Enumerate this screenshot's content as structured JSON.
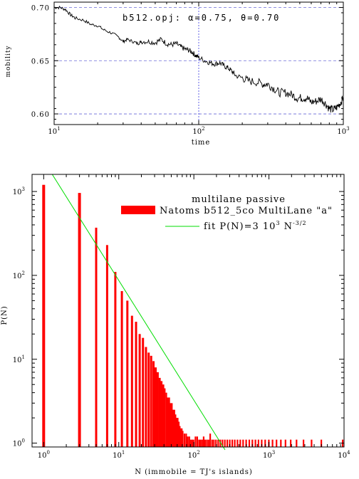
{
  "chart_data": [
    {
      "type": "line",
      "annotation": "b512.opj:   α=0.75,  θ=0.70",
      "xlabel": "time",
      "ylabel": "mobility",
      "xscale": "log",
      "xlim": [
        10,
        1000
      ],
      "ylim": [
        0.59,
        0.705
      ],
      "xticks": [
        10,
        100,
        1000
      ],
      "xtick_labels": [
        {
          "base": "10",
          "exp": "1"
        },
        {
          "base": "10",
          "exp": "2"
        },
        {
          "base": "10",
          "exp": "3"
        }
      ],
      "yticks": [
        0.6,
        0.65,
        0.7
      ],
      "ytick_labels": [
        "0.60",
        "0.65",
        "0.70"
      ],
      "grid": "dashed horizontal at y ticks, vertical at x=100",
      "series": [
        {
          "color": "#000000",
          "x": [
            10,
            11,
            12,
            13,
            14,
            16,
            18,
            20,
            22,
            25,
            28,
            30,
            32,
            35,
            38,
            40,
            45,
            50,
            55,
            60,
            65,
            70,
            75,
            80,
            85,
            90,
            95,
            100,
            110,
            120,
            130,
            140,
            150,
            160,
            170,
            180,
            200,
            220,
            250,
            280,
            300,
            330,
            360,
            400,
            440,
            480,
            520,
            560,
            600,
            650,
            700,
            750,
            800,
            850,
            900,
            950,
            1000
          ],
          "y": [
            0.7,
            0.7,
            0.698,
            0.693,
            0.69,
            0.688,
            0.684,
            0.683,
            0.679,
            0.676,
            0.672,
            0.668,
            0.67,
            0.668,
            0.666,
            0.668,
            0.668,
            0.667,
            0.67,
            0.666,
            0.665,
            0.666,
            0.663,
            0.661,
            0.66,
            0.658,
            0.655,
            0.653,
            0.65,
            0.648,
            0.647,
            0.648,
            0.645,
            0.643,
            0.64,
            0.636,
            0.634,
            0.631,
            0.63,
            0.628,
            0.628,
            0.624,
            0.62,
            0.62,
            0.618,
            0.615,
            0.615,
            0.615,
            0.611,
            0.612,
            0.614,
            0.61,
            0.605,
            0.604,
            0.606,
            0.61,
            0.615
          ]
        }
      ]
    },
    {
      "type": "bar",
      "xlabel": "N (immobile = TJ's islands)",
      "ylabel": "P(N)",
      "xscale": "log",
      "yscale": "log",
      "xlim": [
        0.7,
        10000
      ],
      "ylim": [
        0.9,
        1600
      ],
      "xticks": [
        1,
        10,
        100,
        1000,
        10000
      ],
      "xtick_labels": [
        {
          "base": "10",
          "exp": "0"
        },
        {
          "base": "10",
          "exp": "1"
        },
        {
          "base": "10",
          "exp": "2"
        },
        {
          "base": "10",
          "exp": "3"
        },
        {
          "base": "10",
          "exp": "4"
        }
      ],
      "yticks": [
        1,
        10,
        100,
        1000
      ],
      "ytick_labels": [
        {
          "base": "10",
          "exp": "0"
        },
        {
          "base": "10",
          "exp": "1"
        },
        {
          "base": "10",
          "exp": "2"
        },
        {
          "base": "10",
          "exp": "3"
        }
      ],
      "legend": {
        "title": "multilane passive",
        "placement": "top-right",
        "entries": [
          {
            "label": "Natoms b512_5co MultiLane \"a\"",
            "color": "#ff0000",
            "kind": "bar"
          },
          {
            "label_main": "fit P(N)=3 10",
            "label_sup1": "3",
            "label_mid": " N",
            "label_sup2": "-3/2",
            "color": "#00dd00",
            "kind": "line"
          }
        ]
      },
      "series": [
        {
          "name": "Natoms b512_5co MultiLane \"a\"",
          "color": "#ff0000",
          "x": [
            1,
            3,
            5,
            7,
            9,
            11,
            13,
            15,
            17,
            19,
            21,
            23,
            25,
            27,
            29,
            31,
            33,
            35,
            37,
            39,
            41,
            43,
            45,
            47,
            49,
            51,
            53,
            55,
            57,
            59,
            61,
            63,
            65,
            67,
            69,
            71,
            75,
            79,
            83,
            87,
            91,
            95,
            99,
            105,
            111,
            117,
            123,
            129,
            135,
            141,
            149,
            157,
            165,
            175,
            185,
            197,
            211,
            225,
            241,
            259,
            279,
            301,
            325,
            351,
            381,
            415,
            453,
            497,
            547,
            601,
            661,
            725,
            801,
            891,
            995,
            1115,
            1261,
            1441,
            1661,
            1947,
            2331,
            2887,
            3691,
            4983,
            9601
          ],
          "values": [
            1200,
            960,
            370,
            230,
            110,
            65,
            50,
            33,
            28,
            20,
            18,
            14,
            12,
            11,
            9.5,
            8,
            7,
            6,
            5.5,
            5,
            4.5,
            4,
            3.5,
            3.5,
            3,
            3,
            2.5,
            2.5,
            2.2,
            2,
            2,
            1.8,
            1.6,
            1.5,
            1.5,
            1.4,
            1.3,
            1.3,
            1.2,
            1.2,
            1.1,
            1.1,
            1.1,
            1.2,
            1.2,
            1.1,
            1.1,
            1.1,
            1.2,
            1.1,
            1.1,
            1.1,
            1.3,
            1.1,
            1.1,
            1.1,
            1.1,
            1.1,
            1.1,
            1.1,
            1.1,
            1.1,
            1.1,
            1.1,
            1.1,
            1.1,
            1.1,
            1.1,
            1.1,
            1.1,
            1.1,
            1.1,
            1.1,
            1.1,
            1.1,
            1.1,
            1.1,
            1.1,
            1.1,
            1.1,
            1.1,
            1.1,
            1.1,
            1.1,
            1.1
          ]
        },
        {
          "name": "fit P(N)=3 10^3 N^-3/2",
          "type": "line",
          "color": "#00dd00",
          "x": [
            1.3,
            260
          ],
          "values": [
            2000,
            0.72
          ]
        }
      ]
    }
  ]
}
